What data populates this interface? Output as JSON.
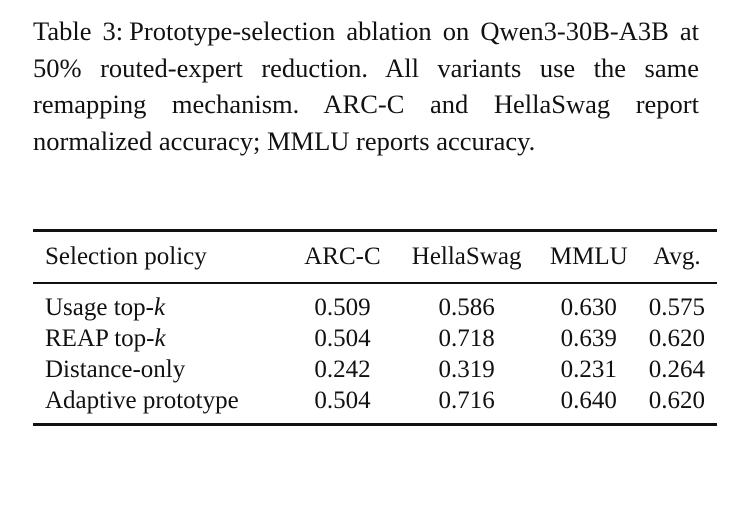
{
  "caption": {
    "label": "Table 3:",
    "text": "Prototype-selection ablation on Qwen3-30B-A3B at 50% routed-expert reduction. All variants use the same remapping mechanism.  ARC-C and HellaSwag report normalized accuracy; MMLU reports accuracy."
  },
  "table": {
    "headers": {
      "policy": "Selection policy",
      "arc": "ARC-C",
      "hella": "HellaSwag",
      "mmlu": "MMLU",
      "avg": "Avg."
    },
    "rows": [
      {
        "policy": "Usage top-",
        "policy_var": "k",
        "arc": "0.509",
        "hella": "0.586",
        "mmlu": "0.630",
        "avg": "0.575"
      },
      {
        "policy": "REAP top-",
        "policy_var": "k",
        "arc": "0.504",
        "hella": "0.718",
        "mmlu": "0.639",
        "avg": "0.620"
      },
      {
        "policy": "Distance-only",
        "policy_var": "",
        "arc": "0.242",
        "hella": "0.319",
        "mmlu": "0.231",
        "avg": "0.264"
      },
      {
        "policy": "Adaptive prototype",
        "policy_var": "",
        "arc": "0.504",
        "hella": "0.716",
        "mmlu": "0.640",
        "avg": "0.620"
      }
    ]
  }
}
